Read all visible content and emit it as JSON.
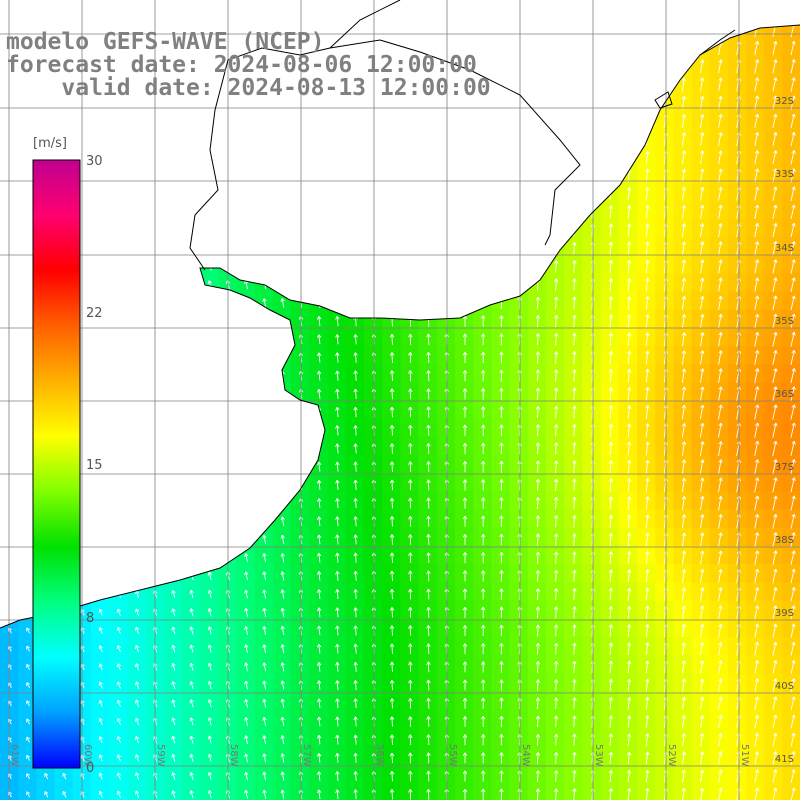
{
  "title": {
    "line1": "modelo GEFS-WAVE (NCEP)",
    "line2": "forecast date: 2024-08-06 12:00:00",
    "line3": "    valid date: 2024-08-13 12:00:00"
  },
  "colorbar": {
    "unit": "[m/s]",
    "ticks": [
      "30",
      "22",
      "15",
      "8",
      "0"
    ],
    "stops": [
      "#0000ff",
      "#00a0ff",
      "#00ffff",
      "#00ff80",
      "#00e000",
      "#80ff00",
      "#ffff00",
      "#ffb000",
      "#ff6000",
      "#ff0000",
      "#ff0070",
      "#c00090"
    ]
  },
  "map": {
    "lat_labels": [
      "32S",
      "33S",
      "34S",
      "35S",
      "36S",
      "37S",
      "38S",
      "39S",
      "40S",
      "41S"
    ],
    "lon_labels": [
      "61W",
      "60W",
      "59W",
      "58W",
      "57W",
      "56W",
      "55W",
      "54W",
      "53W",
      "52W",
      "51W"
    ],
    "colors": {
      "land": "#ffffff",
      "coastline": "#000000",
      "grid": "#808080",
      "arrows": "#ffffff"
    }
  }
}
